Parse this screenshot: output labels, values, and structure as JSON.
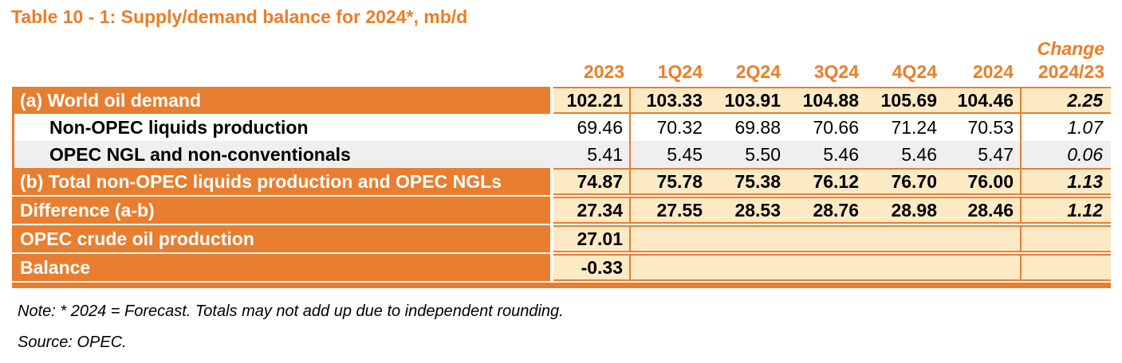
{
  "title": "Table 10 - 1: Supply/demand balance for 2024*, mb/d",
  "header": {
    "change_label": "Change",
    "columns": [
      "2023",
      "1Q24",
      "2Q24",
      "3Q24",
      "4Q24",
      "2024",
      "2024/23"
    ]
  },
  "table": {
    "rows": [
      {
        "label": "(a) World oil demand",
        "style": "orange",
        "values": [
          "102.21",
          "103.33",
          "103.91",
          "104.88",
          "105.69",
          "104.46"
        ],
        "change": "2.25"
      },
      {
        "label": "Non-OPEC liquids production",
        "style": "white",
        "values": [
          "69.46",
          "70.32",
          "69.88",
          "70.66",
          "71.24",
          "70.53"
        ],
        "change": "1.07"
      },
      {
        "label": "OPEC NGL and non-conventionals",
        "style": "gray",
        "values": [
          "5.41",
          "5.45",
          "5.50",
          "5.46",
          "5.46",
          "5.47"
        ],
        "change": "0.06"
      },
      {
        "label": "(b) Total non-OPEC liquids production and OPEC NGLs",
        "style": "orange",
        "values": [
          "74.87",
          "75.78",
          "75.38",
          "76.12",
          "76.70",
          "76.00"
        ],
        "change": "1.13"
      },
      {
        "label": "Difference (a-b)",
        "style": "orange",
        "values": [
          "27.34",
          "27.55",
          "28.53",
          "28.76",
          "28.98",
          "28.46"
        ],
        "change": "1.12"
      },
      {
        "label": "OPEC crude oil production",
        "style": "orange",
        "merged": true,
        "values": [
          "27.01"
        ],
        "change": ""
      },
      {
        "label": "Balance",
        "style": "orange",
        "merged": true,
        "values": [
          "-0.33"
        ],
        "change": ""
      }
    ]
  },
  "notes": {
    "note": "Note: * 2024 = Forecast. Totals may not add up due to independent rounding.",
    "source": "Source: OPEC."
  },
  "colors": {
    "accent_orange": "#E87E30",
    "header_text_orange": "#ED7D26",
    "cream_cell": "#FCEAC5",
    "gray_row": "#EFEFEF"
  }
}
